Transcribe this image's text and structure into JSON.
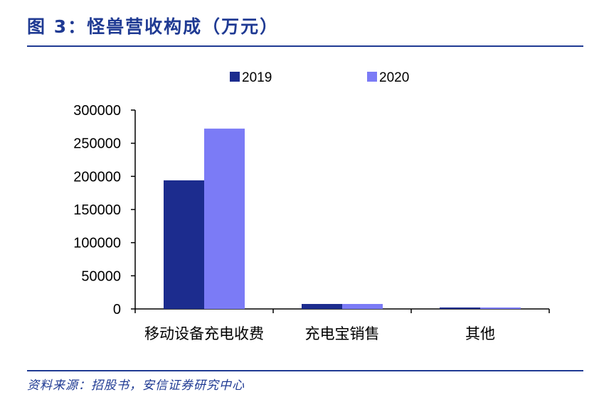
{
  "header": {
    "title": "图 3：怪兽营收构成（万元）"
  },
  "footer": {
    "source": "资料来源：招股书，安信证券研究中心"
  },
  "colors": {
    "accent": "#1f3a93",
    "series_2019": "#1c2c8e",
    "series_2020": "#7b7bf6"
  },
  "chart_data": {
    "type": "bar",
    "title": "怪兽营收构成（万元）",
    "categories": [
      "移动设备充电收费",
      "充电宝销售",
      "其他"
    ],
    "series": [
      {
        "name": "2019",
        "values": [
          194000,
          7500,
          2200
        ]
      },
      {
        "name": "2020",
        "values": [
          272000,
          7500,
          2200
        ]
      }
    ],
    "xlabel": "",
    "ylabel": "",
    "ylim": [
      0,
      300000
    ],
    "yticks": [
      "0",
      "50000",
      "100000",
      "150000",
      "200000",
      "250000",
      "300000"
    ],
    "grid": false,
    "legend_position": "top"
  }
}
